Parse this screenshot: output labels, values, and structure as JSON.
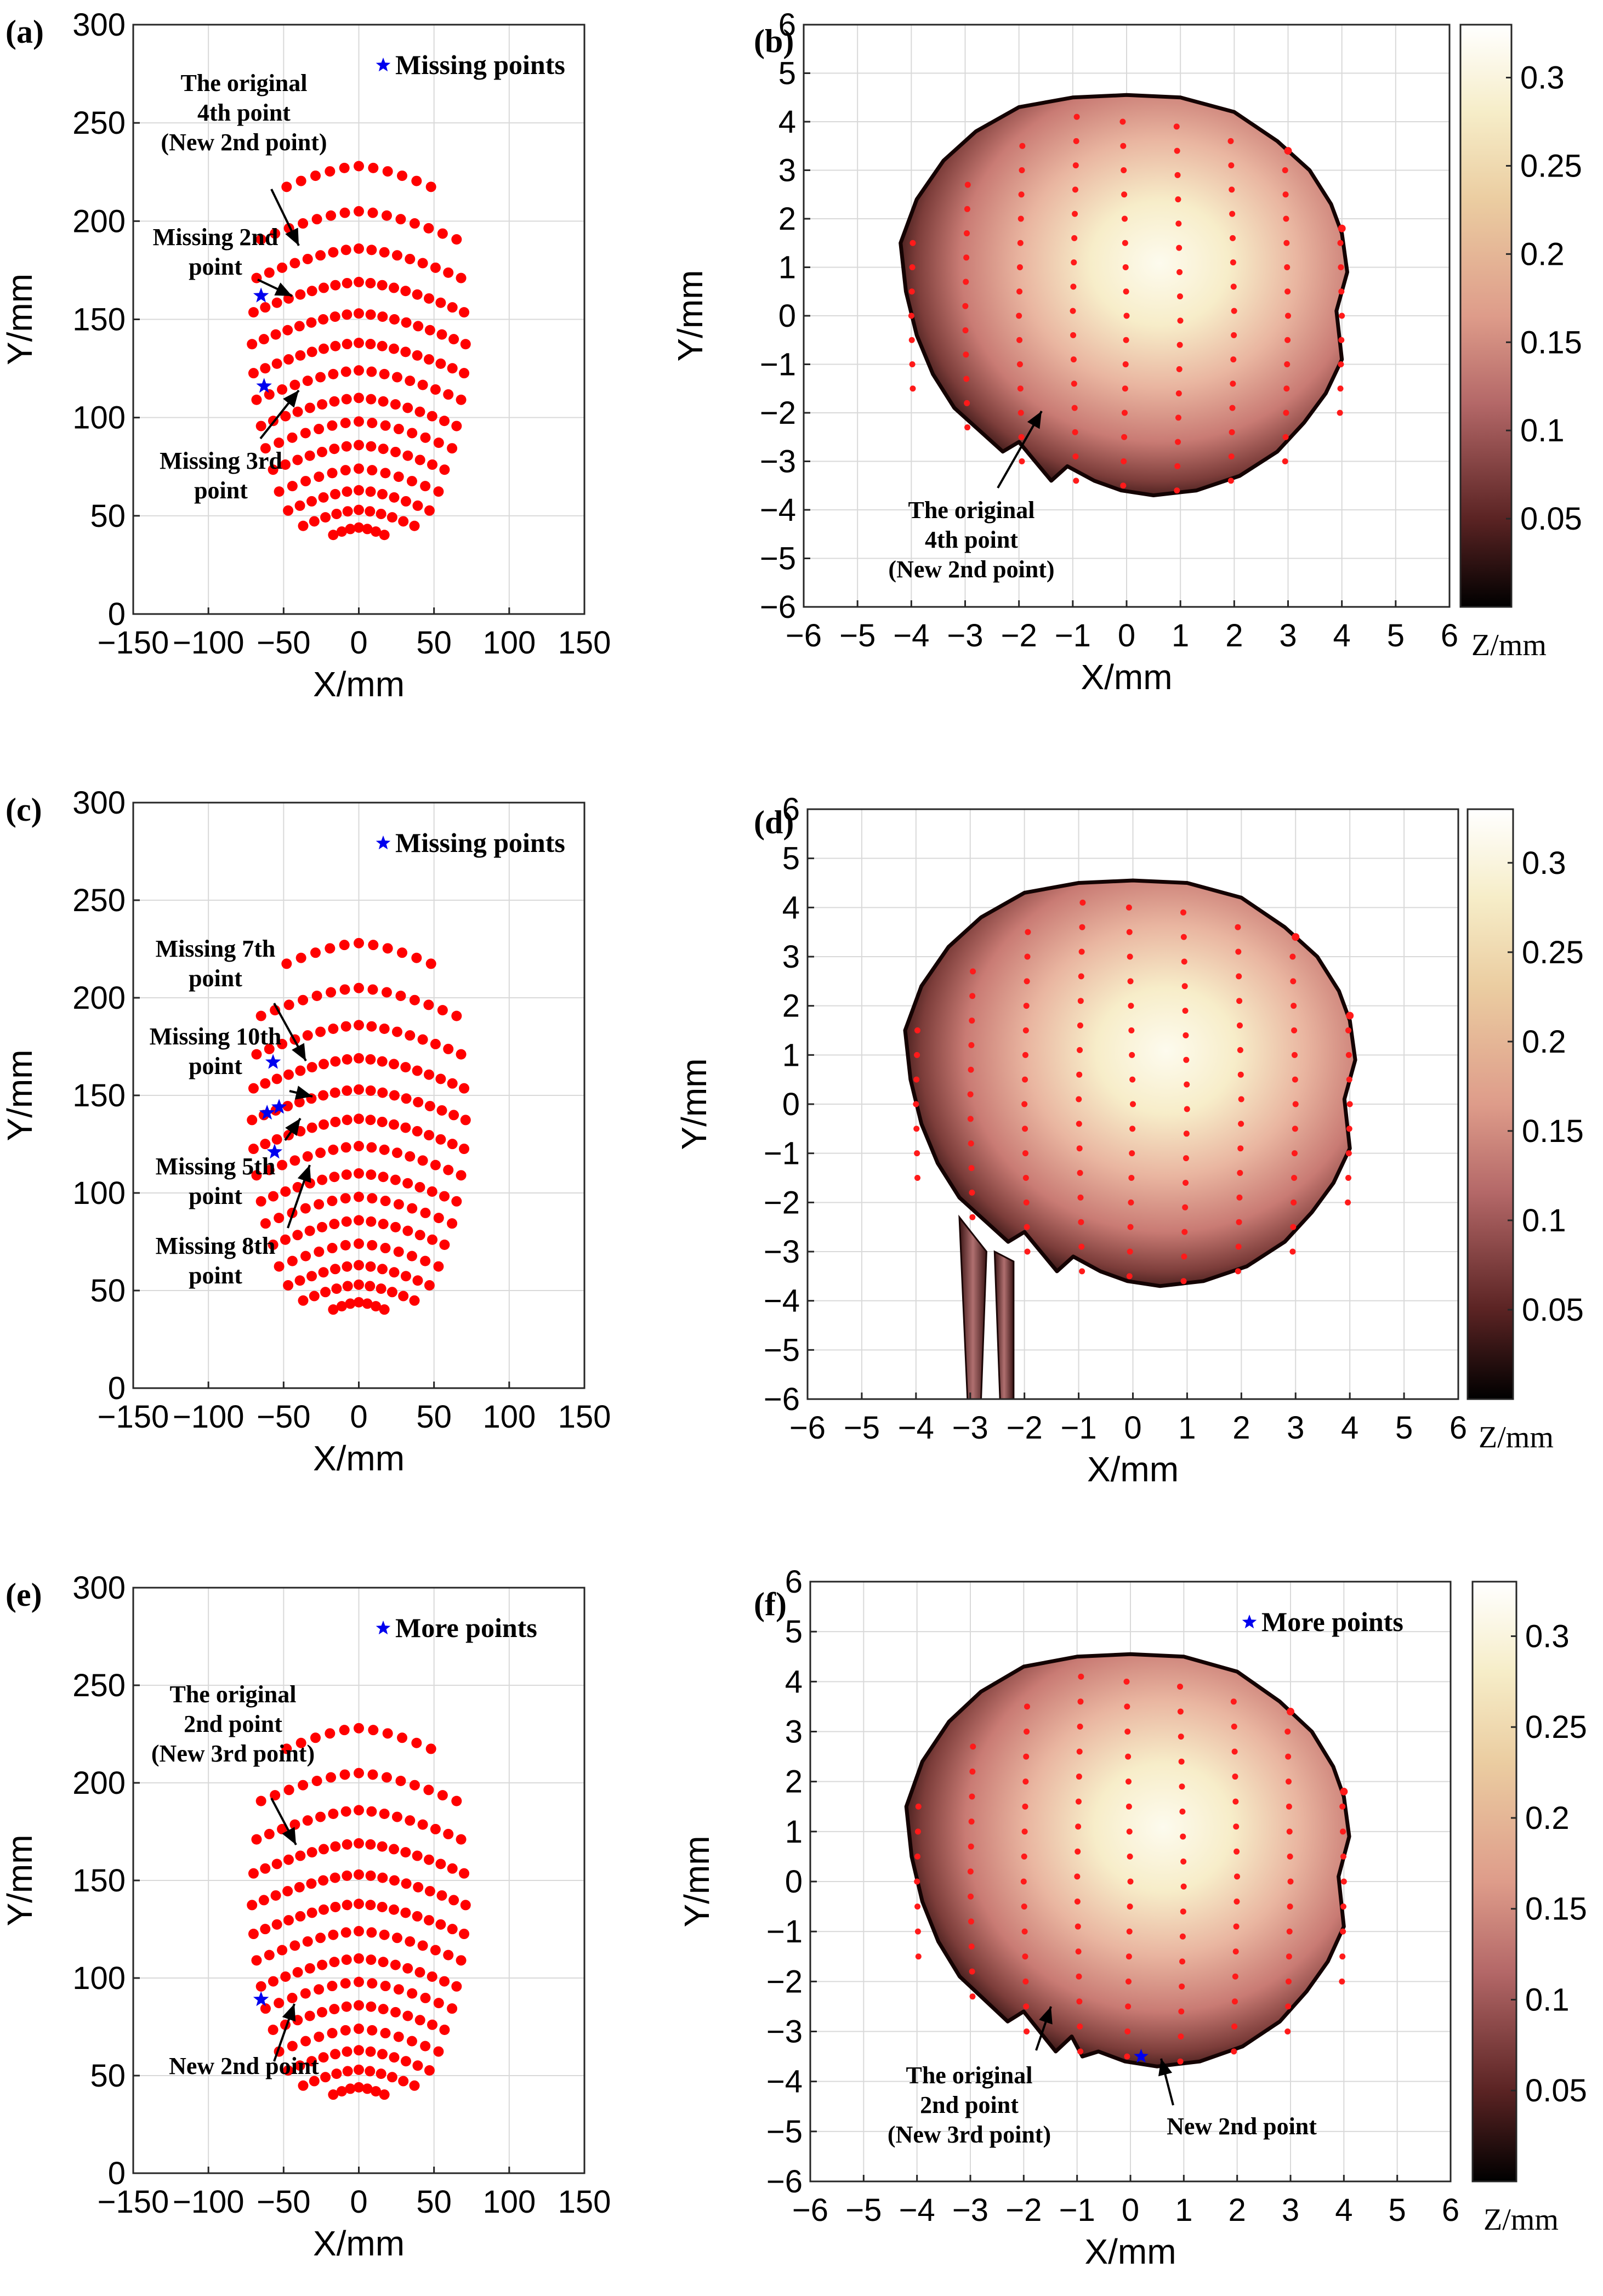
{
  "chart_data": [
    {
      "id": "a",
      "type": "scatter",
      "panel_label": "(a)",
      "xlabel": "X/mm",
      "ylabel": "Y/mm",
      "xlim": [
        -150,
        150
      ],
      "ylim": [
        0,
        300
      ],
      "xticks": [
        "−150",
        "−100",
        "−50",
        "0",
        "50",
        "100",
        "150"
      ],
      "yticks": [
        "0",
        "50",
        "100",
        "150",
        "200",
        "250",
        "300"
      ],
      "grid": true,
      "legend": {
        "label": "Missing points",
        "position": "top-right"
      },
      "missing_points": [
        [
          -65,
          162
        ],
        [
          -63,
          116
        ]
      ],
      "annotations": [
        {
          "lines": [
            "The original",
            "4th point",
            "(New 2nd point)"
          ]
        },
        {
          "lines": [
            "Missing 2nd",
            "point"
          ]
        },
        {
          "lines": [
            "Missing 3rd",
            "point"
          ]
        }
      ]
    },
    {
      "id": "b",
      "type": "heatmap",
      "panel_label": "(b)",
      "xlabel": "X/mm",
      "ylabel": "Y/mm",
      "xlim": [
        -6,
        6
      ],
      "ylim": [
        -6,
        6
      ],
      "xticks": [
        "−6",
        "−5",
        "−4",
        "−3",
        "−2",
        "−1",
        "0",
        "1",
        "2",
        "3",
        "4",
        "5",
        "6"
      ],
      "yticks": [
        "−6",
        "−5",
        "−4",
        "−3",
        "−2",
        "−1",
        "0",
        "1",
        "2",
        "3",
        "4",
        "5",
        "6"
      ],
      "grid": true,
      "colorbar": {
        "label": "Z/mm",
        "ticks": [
          "0.05",
          "0.1",
          "0.15",
          "0.2",
          "0.25",
          "0.3"
        ],
        "range": [
          0,
          0.33
        ]
      },
      "annotations": [
        {
          "lines": [
            "The original",
            "4th point",
            "(New 2nd point)"
          ]
        }
      ]
    },
    {
      "id": "c",
      "type": "scatter",
      "panel_label": "(c)",
      "xlabel": "X/mm",
      "ylabel": "Y/mm",
      "xlim": [
        -150,
        150
      ],
      "ylim": [
        0,
        300
      ],
      "xticks": [
        "−150",
        "−100",
        "−50",
        "0",
        "50",
        "100",
        "150"
      ],
      "yticks": [
        "0",
        "50",
        "100",
        "150",
        "200",
        "250",
        "300"
      ],
      "grid": true,
      "legend": {
        "label": "Missing points",
        "position": "top-right"
      },
      "missing_points": [
        [
          -57,
          167
        ],
        [
          -53,
          144
        ],
        [
          -61,
          141
        ],
        [
          -56,
          121
        ]
      ],
      "annotations": [
        {
          "lines": [
            "Missing 7th",
            "point"
          ]
        },
        {
          "lines": [
            "Missing 10th",
            "point"
          ]
        },
        {
          "lines": [
            "Missing 5th",
            "point"
          ]
        },
        {
          "lines": [
            "Missing 8th",
            "point"
          ]
        }
      ]
    },
    {
      "id": "d",
      "type": "heatmap",
      "panel_label": "(d)",
      "xlabel": "X/mm",
      "ylabel": "Y/mm",
      "xlim": [
        -6,
        6
      ],
      "ylim": [
        -6,
        6
      ],
      "xticks": [
        "−6",
        "−5",
        "−4",
        "−3",
        "−2",
        "−1",
        "0",
        "1",
        "2",
        "3",
        "4",
        "5",
        "6"
      ],
      "yticks": [
        "−6",
        "−5",
        "−4",
        "−3",
        "−2",
        "−1",
        "0",
        "1",
        "2",
        "3",
        "4",
        "5",
        "6"
      ],
      "grid": true,
      "colorbar": {
        "label": "Z/mm",
        "ticks": [
          "0.05",
          "0.1",
          "0.15",
          "0.2",
          "0.25",
          "0.3"
        ],
        "range": [
          0,
          0.33
        ]
      },
      "annotations": []
    },
    {
      "id": "e",
      "type": "scatter",
      "panel_label": "(e)",
      "xlabel": "X/mm",
      "ylabel": "Y/mm",
      "xlim": [
        -150,
        150
      ],
      "ylim": [
        0,
        300
      ],
      "xticks": [
        "−150",
        "−100",
        "−50",
        "0",
        "50",
        "100",
        "150"
      ],
      "yticks": [
        "0",
        "50",
        "100",
        "150",
        "200",
        "250",
        "300"
      ],
      "grid": true,
      "legend": {
        "label": "More points",
        "position": "top-right"
      },
      "missing_points": [
        [
          -65,
          89
        ]
      ],
      "annotations": [
        {
          "lines": [
            "The original",
            "2nd point",
            "(New 3rd point)"
          ]
        },
        {
          "lines": [
            "New 2nd point"
          ]
        }
      ]
    },
    {
      "id": "f",
      "type": "heatmap",
      "panel_label": "(f)",
      "xlabel": "X/mm",
      "ylabel": "Y/mm",
      "xlim": [
        -6,
        6
      ],
      "ylim": [
        -6,
        6
      ],
      "xticks": [
        "−6",
        "−5",
        "−4",
        "−3",
        "−2",
        "−1",
        "0",
        "1",
        "2",
        "3",
        "4",
        "5",
        "6"
      ],
      "yticks": [
        "−6",
        "−5",
        "−4",
        "−3",
        "−2",
        "−1",
        "0",
        "1",
        "2",
        "3",
        "4",
        "5",
        "6"
      ],
      "grid": true,
      "legend": {
        "label": "More points",
        "position": "top-right"
      },
      "new_points": [
        [
          0.2,
          -3.5
        ]
      ],
      "colorbar": {
        "label": "Z/mm",
        "ticks": [
          "0.05",
          "0.1",
          "0.15",
          "0.2",
          "0.25",
          "0.3"
        ],
        "range": [
          0,
          0.33
        ]
      },
      "annotations": [
        {
          "lines": [
            "The original",
            "2nd point",
            "(New 3rd point)"
          ]
        },
        {
          "lines": [
            "New 2nd point"
          ]
        }
      ]
    }
  ],
  "scatter_rows": [
    {
      "y": 44,
      "n": 7,
      "x_half_span": 17
    },
    {
      "y": 53,
      "n": 11,
      "x_half_span": 37
    },
    {
      "y": 63,
      "n": 13,
      "x_half_span": 47
    },
    {
      "y": 74,
      "n": 13,
      "x_half_span": 53
    },
    {
      "y": 86,
      "n": 15,
      "x_half_span": 57
    },
    {
      "y": 98,
      "n": 15,
      "x_half_span": 62
    },
    {
      "y": 110,
      "n": 17,
      "x_half_span": 65
    },
    {
      "y": 124,
      "n": 17,
      "x_half_span": 68
    },
    {
      "y": 138,
      "n": 19,
      "x_half_span": 70
    },
    {
      "y": 153,
      "n": 19,
      "x_half_span": 71
    },
    {
      "y": 169,
      "n": 19,
      "x_half_span": 70
    },
    {
      "y": 186,
      "n": 17,
      "x_half_span": 68
    },
    {
      "y": 205,
      "n": 15,
      "x_half_span": 65
    },
    {
      "y": 228,
      "n": 11,
      "x_half_span": 48
    }
  ],
  "heat_columns": {
    "x": [
      -4,
      -3,
      -2,
      -1,
      0,
      1,
      2,
      3,
      4
    ],
    "y_min": [
      -1.5,
      -2.3,
      -3.0,
      -3.4,
      -3.5,
      -3.6,
      -3.4,
      -3.0,
      -2.0
    ],
    "y_max": [
      1.8,
      3.0,
      3.8,
      4.2,
      4.3,
      4.2,
      4.0,
      3.4,
      1.8
    ]
  }
}
